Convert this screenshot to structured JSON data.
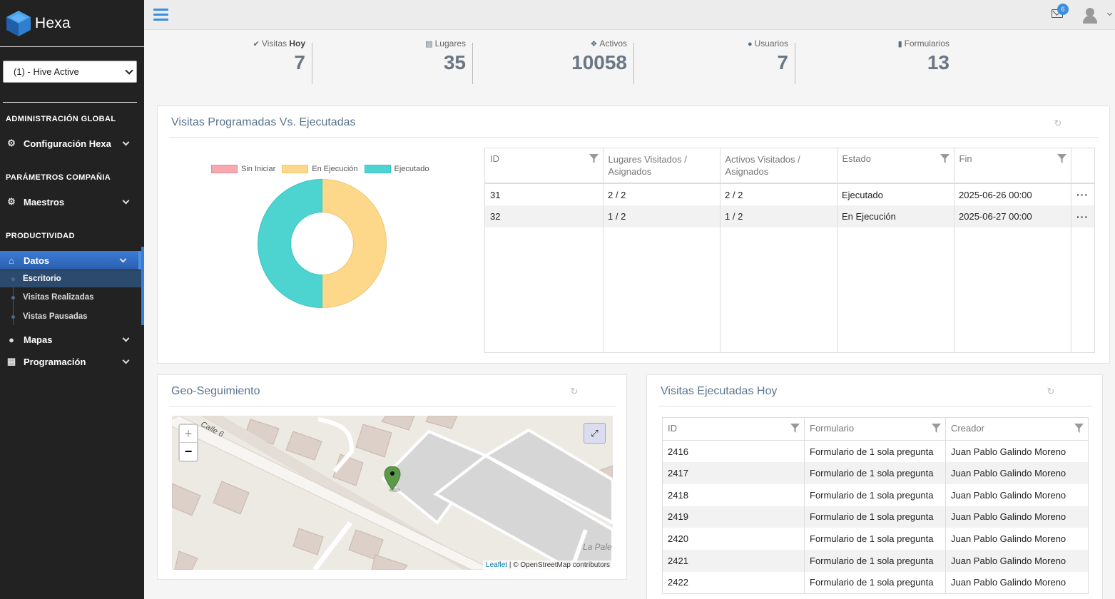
{
  "app": {
    "name": "Hexa"
  },
  "sidebar": {
    "hive_select": "(1) - Hive Active",
    "sections": {
      "admin": "ADMINISTRACIÓN GLOBAL",
      "params": "PARÁMETROS COMPAÑIA",
      "productivity": "PRODUCTIVIDAD"
    },
    "items": {
      "config": "Configuración Hexa",
      "maestros": "Maestros",
      "datos": "Datos",
      "mapas": "Mapas",
      "programacion": "Programación"
    },
    "sub_items": {
      "escritorio": "Escritorio",
      "visitas_realizadas": "Visitas Realizadas",
      "vistas_pausadas": "Vistas Pausadas"
    }
  },
  "topbar": {
    "notification_count": "6"
  },
  "stats": [
    {
      "label": "Visitas ",
      "label_bold": "Hoy",
      "value": "7"
    },
    {
      "label": "Lugares",
      "label_bold": "",
      "value": "35"
    },
    {
      "label": "Activos",
      "label_bold": "",
      "value": "10058"
    },
    {
      "label": "Usuarios",
      "label_bold": "",
      "value": "7"
    },
    {
      "label": "Formularios",
      "label_bold": "",
      "value": "13"
    }
  ],
  "visits_panel": {
    "title": "Visitas Programadas Vs. Ejecutadas",
    "legend": [
      "Sin Iniciar",
      "En Ejecución",
      "Ejecutado"
    ],
    "colors": {
      "sin_iniciar": "#f7a8ae",
      "en_ejecucion": "#fdd88b",
      "ejecutado": "#4ed4d0"
    },
    "chart_data": {
      "type": "pie",
      "labels": [
        "Sin Iniciar",
        "En Ejecución",
        "Ejecutado"
      ],
      "values": [
        0,
        1,
        1
      ]
    },
    "columns": [
      "ID",
      "Lugares Visitados / Asignados",
      "Activos Visitados / Asignados",
      "Estado",
      "Fin"
    ],
    "rows": [
      {
        "id": "31",
        "lugares": "2 / 2",
        "activos": "2 / 2",
        "estado": "Ejecutado",
        "fin": "2025-06-26 00:00"
      },
      {
        "id": "32",
        "lugares": "1 / 2",
        "activos": "1 / 2",
        "estado": "En Ejecución",
        "fin": "2025-06-27 00:00"
      }
    ]
  },
  "geo_panel": {
    "title": "Geo-Seguimiento",
    "map": {
      "zoom_in": "+",
      "zoom_out": "−",
      "street_1": "Calle 6",
      "street_2": "La Pale",
      "attribution_link": "Leaflet",
      "attribution_text": " | © OpenStreetMap contributors"
    }
  },
  "today_panel": {
    "title": "Visitas Ejecutadas Hoy",
    "columns": [
      "ID",
      "Formulario",
      "Creador"
    ],
    "rows": [
      {
        "id": "2416",
        "form": "Formulario de 1 sola pregunta",
        "creator": "Juan Pablo Galindo Moreno"
      },
      {
        "id": "2417",
        "form": "Formulario de 1 sola pregunta",
        "creator": "Juan Pablo Galindo Moreno"
      },
      {
        "id": "2418",
        "form": "Formulario de 1 sola pregunta",
        "creator": "Juan Pablo Galindo Moreno"
      },
      {
        "id": "2419",
        "form": "Formulario de 1 sola pregunta",
        "creator": "Juan Pablo Galindo Moreno"
      },
      {
        "id": "2420",
        "form": "Formulario de 1 sola pregunta",
        "creator": "Juan Pablo Galindo Moreno"
      },
      {
        "id": "2421",
        "form": "Formulario de 1 sola pregunta",
        "creator": "Juan Pablo Galindo Moreno"
      },
      {
        "id": "2422",
        "form": "Formulario de 1 sola pregunta",
        "creator": "Juan Pablo Galindo Moreno"
      }
    ]
  }
}
